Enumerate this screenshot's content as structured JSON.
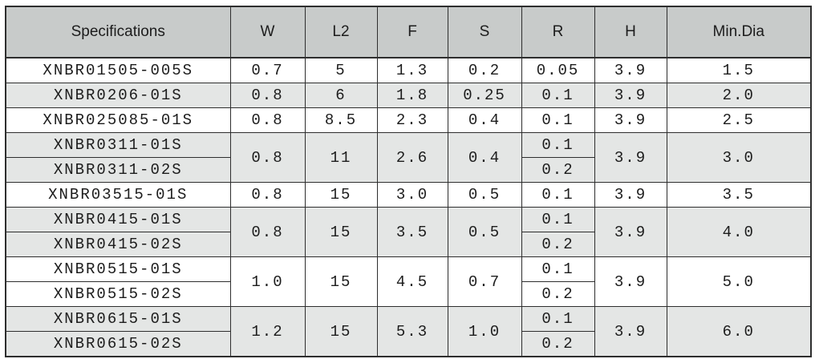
{
  "page": {
    "background": "#ffffff"
  },
  "colors": {
    "header_bg": "#c8cbca",
    "shade_bg": "#e4e6e5",
    "border": "#2e2e2e",
    "text": "#1c1c1c"
  },
  "table": {
    "columns": [
      {
        "key": "spec",
        "label": "Specifications"
      },
      {
        "key": "w",
        "label": "W"
      },
      {
        "key": "l2",
        "label": "L2"
      },
      {
        "key": "f",
        "label": "F"
      },
      {
        "key": "s",
        "label": "S"
      },
      {
        "key": "r",
        "label": "R"
      },
      {
        "key": "h",
        "label": "H"
      },
      {
        "key": "min_dia",
        "label": "Min.Dia"
      }
    ],
    "groups": [
      {
        "shade": false,
        "specs": [
          "XNBR01505-005S"
        ],
        "w": "0.7",
        "l2": "5",
        "f": "1.3",
        "s": "0.2",
        "r": [
          "0.05"
        ],
        "h": "3.9",
        "min_dia": "1.5"
      },
      {
        "shade": true,
        "specs": [
          "XNBR0206-01S"
        ],
        "w": "0.8",
        "l2": "6",
        "f": "1.8",
        "s": "0.25",
        "r": [
          "0.1"
        ],
        "h": "3.9",
        "min_dia": "2.0"
      },
      {
        "shade": false,
        "specs": [
          "XNBR025085-01S"
        ],
        "w": "0.8",
        "l2": "8.5",
        "f": "2.3",
        "s": "0.4",
        "r": [
          "0.1"
        ],
        "h": "3.9",
        "min_dia": "2.5"
      },
      {
        "shade": true,
        "specs": [
          "XNBR0311-01S",
          "XNBR0311-02S"
        ],
        "w": "0.8",
        "l2": "11",
        "f": "2.6",
        "s": "0.4",
        "r": [
          "0.1",
          "0.2"
        ],
        "h": "3.9",
        "min_dia": "3.0"
      },
      {
        "shade": false,
        "specs": [
          "XNBR03515-01S"
        ],
        "w": "0.8",
        "l2": "15",
        "f": "3.0",
        "s": "0.5",
        "r": [
          "0.1"
        ],
        "h": "3.9",
        "min_dia": "3.5"
      },
      {
        "shade": true,
        "specs": [
          "XNBR0415-01S",
          "XNBR0415-02S"
        ],
        "w": "0.8",
        "l2": "15",
        "f": "3.5",
        "s": "0.5",
        "r": [
          "0.1",
          "0.2"
        ],
        "h": "3.9",
        "min_dia": "4.0"
      },
      {
        "shade": false,
        "specs": [
          "XNBR0515-01S",
          "XNBR0515-02S"
        ],
        "w": "1.0",
        "l2": "15",
        "f": "4.5",
        "s": "0.7",
        "r": [
          "0.1",
          "0.2"
        ],
        "h": "3.9",
        "min_dia": "5.0"
      },
      {
        "shade": true,
        "specs": [
          "XNBR0615-01S",
          "XNBR0615-02S"
        ],
        "w": "1.2",
        "l2": "15",
        "f": "5.3",
        "s": "1.0",
        "r": [
          "0.1",
          "0.2"
        ],
        "h": "3.9",
        "min_dia": "6.0"
      }
    ]
  }
}
